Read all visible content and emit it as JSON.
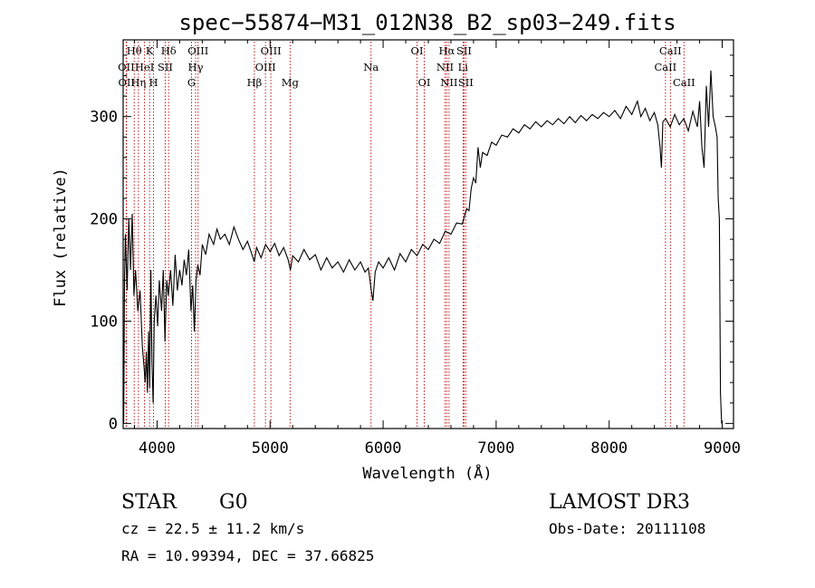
{
  "chart_data": {
    "type": "line",
    "title": "spec−55874−M31_012N38_B2_sp03−249.fits",
    "xlabel": "Wavelength (Å)",
    "ylabel": "Flux (relative)",
    "xlim": [
      3700,
      9100
    ],
    "ylim": [
      -5,
      375
    ],
    "xticks": [
      4000,
      5000,
      6000,
      7000,
      8000,
      9000
    ],
    "yticks": [
      0,
      100,
      200,
      300
    ],
    "grid": false,
    "legend": "none",
    "series": [
      {
        "name": "flux",
        "points": [
          [
            3705,
            0
          ],
          [
            3712,
            140
          ],
          [
            3720,
            185
          ],
          [
            3735,
            130
          ],
          [
            3750,
            200
          ],
          [
            3765,
            150
          ],
          [
            3780,
            205
          ],
          [
            3795,
            125
          ],
          [
            3810,
            150
          ],
          [
            3830,
            110
          ],
          [
            3850,
            130
          ],
          [
            3870,
            75
          ],
          [
            3885,
            55
          ],
          [
            3895,
            40
          ],
          [
            3905,
            70
          ],
          [
            3915,
            30
          ],
          [
            3925,
            90
          ],
          [
            3935,
            35
          ],
          [
            3945,
            150
          ],
          [
            3955,
            60
          ],
          [
            3965,
            20
          ],
          [
            3975,
            100
          ],
          [
            3990,
            125
          ],
          [
            4005,
            95
          ],
          [
            4020,
            140
          ],
          [
            4040,
            110
          ],
          [
            4055,
            150
          ],
          [
            4070,
            80
          ],
          [
            4085,
            140
          ],
          [
            4100,
            125
          ],
          [
            4120,
            150
          ],
          [
            4140,
            115
          ],
          [
            4160,
            165
          ],
          [
            4180,
            130
          ],
          [
            4200,
            150
          ],
          [
            4220,
            135
          ],
          [
            4240,
            160
          ],
          [
            4260,
            145
          ],
          [
            4280,
            170
          ],
          [
            4300,
            110
          ],
          [
            4315,
            135
          ],
          [
            4330,
            90
          ],
          [
            4345,
            140
          ],
          [
            4360,
            155
          ],
          [
            4380,
            145
          ],
          [
            4400,
            175
          ],
          [
            4430,
            165
          ],
          [
            4460,
            185
          ],
          [
            4500,
            175
          ],
          [
            4530,
            190
          ],
          [
            4560,
            180
          ],
          [
            4600,
            185
          ],
          [
            4640,
            175
          ],
          [
            4680,
            192
          ],
          [
            4720,
            180
          ],
          [
            4760,
            170
          ],
          [
            4800,
            178
          ],
          [
            4840,
            165
          ],
          [
            4860,
            158
          ],
          [
            4880,
            172
          ],
          [
            4920,
            162
          ],
          [
            4960,
            175
          ],
          [
            5000,
            168
          ],
          [
            5040,
            176
          ],
          [
            5080,
            164
          ],
          [
            5120,
            172
          ],
          [
            5160,
            160
          ],
          [
            5180,
            150
          ],
          [
            5200,
            164
          ],
          [
            5250,
            158
          ],
          [
            5300,
            170
          ],
          [
            5350,
            160
          ],
          [
            5400,
            165
          ],
          [
            5450,
            150
          ],
          [
            5500,
            162
          ],
          [
            5550,
            152
          ],
          [
            5600,
            158
          ],
          [
            5650,
            148
          ],
          [
            5700,
            160
          ],
          [
            5750,
            150
          ],
          [
            5800,
            158
          ],
          [
            5840,
            148
          ],
          [
            5870,
            152
          ],
          [
            5895,
            130
          ],
          [
            5910,
            120
          ],
          [
            5930,
            148
          ],
          [
            5960,
            158
          ],
          [
            6000,
            152
          ],
          [
            6050,
            162
          ],
          [
            6100,
            150
          ],
          [
            6150,
            166
          ],
          [
            6200,
            158
          ],
          [
            6250,
            170
          ],
          [
            6300,
            164
          ],
          [
            6350,
            175
          ],
          [
            6400,
            170
          ],
          [
            6450,
            180
          ],
          [
            6500,
            176
          ],
          [
            6550,
            188
          ],
          [
            6600,
            185
          ],
          [
            6650,
            196
          ],
          [
            6700,
            195
          ],
          [
            6740,
            210
          ],
          [
            6760,
            208
          ],
          [
            6780,
            230
          ],
          [
            6800,
            240
          ],
          [
            6820,
            235
          ],
          [
            6840,
            270
          ],
          [
            6860,
            250
          ],
          [
            6880,
            265
          ],
          [
            6920,
            262
          ],
          [
            6960,
            275
          ],
          [
            7000,
            272
          ],
          [
            7050,
            282
          ],
          [
            7100,
            280
          ],
          [
            7150,
            288
          ],
          [
            7200,
            284
          ],
          [
            7250,
            292
          ],
          [
            7300,
            288
          ],
          [
            7350,
            295
          ],
          [
            7400,
            290
          ],
          [
            7450,
            296
          ],
          [
            7500,
            292
          ],
          [
            7550,
            298
          ],
          [
            7600,
            293
          ],
          [
            7650,
            300
          ],
          [
            7700,
            294
          ],
          [
            7750,
            301
          ],
          [
            7800,
            296
          ],
          [
            7850,
            302
          ],
          [
            7900,
            298
          ],
          [
            7950,
            304
          ],
          [
            8000,
            300
          ],
          [
            8050,
            306
          ],
          [
            8100,
            298
          ],
          [
            8150,
            310
          ],
          [
            8200,
            302
          ],
          [
            8250,
            315
          ],
          [
            8280,
            300
          ],
          [
            8320,
            308
          ],
          [
            8360,
            296
          ],
          [
            8400,
            304
          ],
          [
            8430,
            292
          ],
          [
            8450,
            270
          ],
          [
            8462,
            250
          ],
          [
            8475,
            295
          ],
          [
            8500,
            298
          ],
          [
            8540,
            290
          ],
          [
            8580,
            302
          ],
          [
            8620,
            292
          ],
          [
            8660,
            298
          ],
          [
            8700,
            286
          ],
          [
            8740,
            305
          ],
          [
            8780,
            290
          ],
          [
            8800,
            315
          ],
          [
            8820,
            270
          ],
          [
            8840,
            250
          ],
          [
            8860,
            330
          ],
          [
            8880,
            290
          ],
          [
            8900,
            345
          ],
          [
            8920,
            300
          ],
          [
            8940,
            290
          ],
          [
            8955,
            280
          ],
          [
            8965,
            220
          ],
          [
            8975,
            200
          ],
          [
            8985,
            30
          ],
          [
            8995,
            0
          ]
        ]
      }
    ],
    "line_markers": [
      {
        "x": 3727,
        "label": "OII",
        "row": 2
      },
      {
        "x": 3730,
        "label": "OII",
        "row": 3
      },
      {
        "x": 3798,
        "label": "Hθ",
        "row": 1
      },
      {
        "x": 3835,
        "label": "Hη",
        "row": 3
      },
      {
        "x": 3889,
        "label": "HeI",
        "row": 2
      },
      {
        "x": 3934,
        "label": "K",
        "row": 1
      },
      {
        "x": 3969,
        "label": "H",
        "row": 3
      },
      {
        "x": 4072,
        "label": "SII",
        "row": 2
      },
      {
        "x": 4102,
        "label": "Hδ",
        "row": 1
      },
      {
        "x": 4305,
        "label": "G",
        "row": 3
      },
      {
        "x": 4341,
        "label": "Hγ",
        "row": 2
      },
      {
        "x": 4363,
        "label": "OIII",
        "row": 1
      },
      {
        "x": 4861,
        "label": "Hβ",
        "row": 3
      },
      {
        "x": 4959,
        "label": "OIII",
        "row": 2
      },
      {
        "x": 5007,
        "label": "OIII",
        "row": 1
      },
      {
        "x": 5177,
        "label": "Mg",
        "row": 3
      },
      {
        "x": 5893,
        "label": "Na",
        "row": 2
      },
      {
        "x": 6300,
        "label": "OI",
        "row": 1
      },
      {
        "x": 6364,
        "label": "OI",
        "row": 3
      },
      {
        "x": 6548,
        "label": "NII",
        "row": 2
      },
      {
        "x": 6563,
        "label": "Hα",
        "row": 1
      },
      {
        "x": 6583,
        "label": "NII",
        "row": 3
      },
      {
        "x": 6707,
        "label": "Li",
        "row": 2
      },
      {
        "x": 6716,
        "label": "SII",
        "row": 1
      },
      {
        "x": 6731,
        "label": "SII",
        "row": 3
      },
      {
        "x": 8498,
        "label": "CaII",
        "row": 2
      },
      {
        "x": 8542,
        "label": "CaII",
        "row": 1
      },
      {
        "x": 8662,
        "label": "CaII",
        "row": 3
      }
    ]
  },
  "info": {
    "object_class": "STAR",
    "subclass": "G0",
    "survey": "LAMOST DR3",
    "cz": "cz = 22.5 ± 11.2 km/s",
    "obs_date": "Obs-Date: 20111108",
    "radec": "RA =  10.99394, DEC =  37.66825"
  },
  "colors": {
    "axis": "#000000",
    "spectrum": "#000000",
    "marker": "#c00000"
  }
}
